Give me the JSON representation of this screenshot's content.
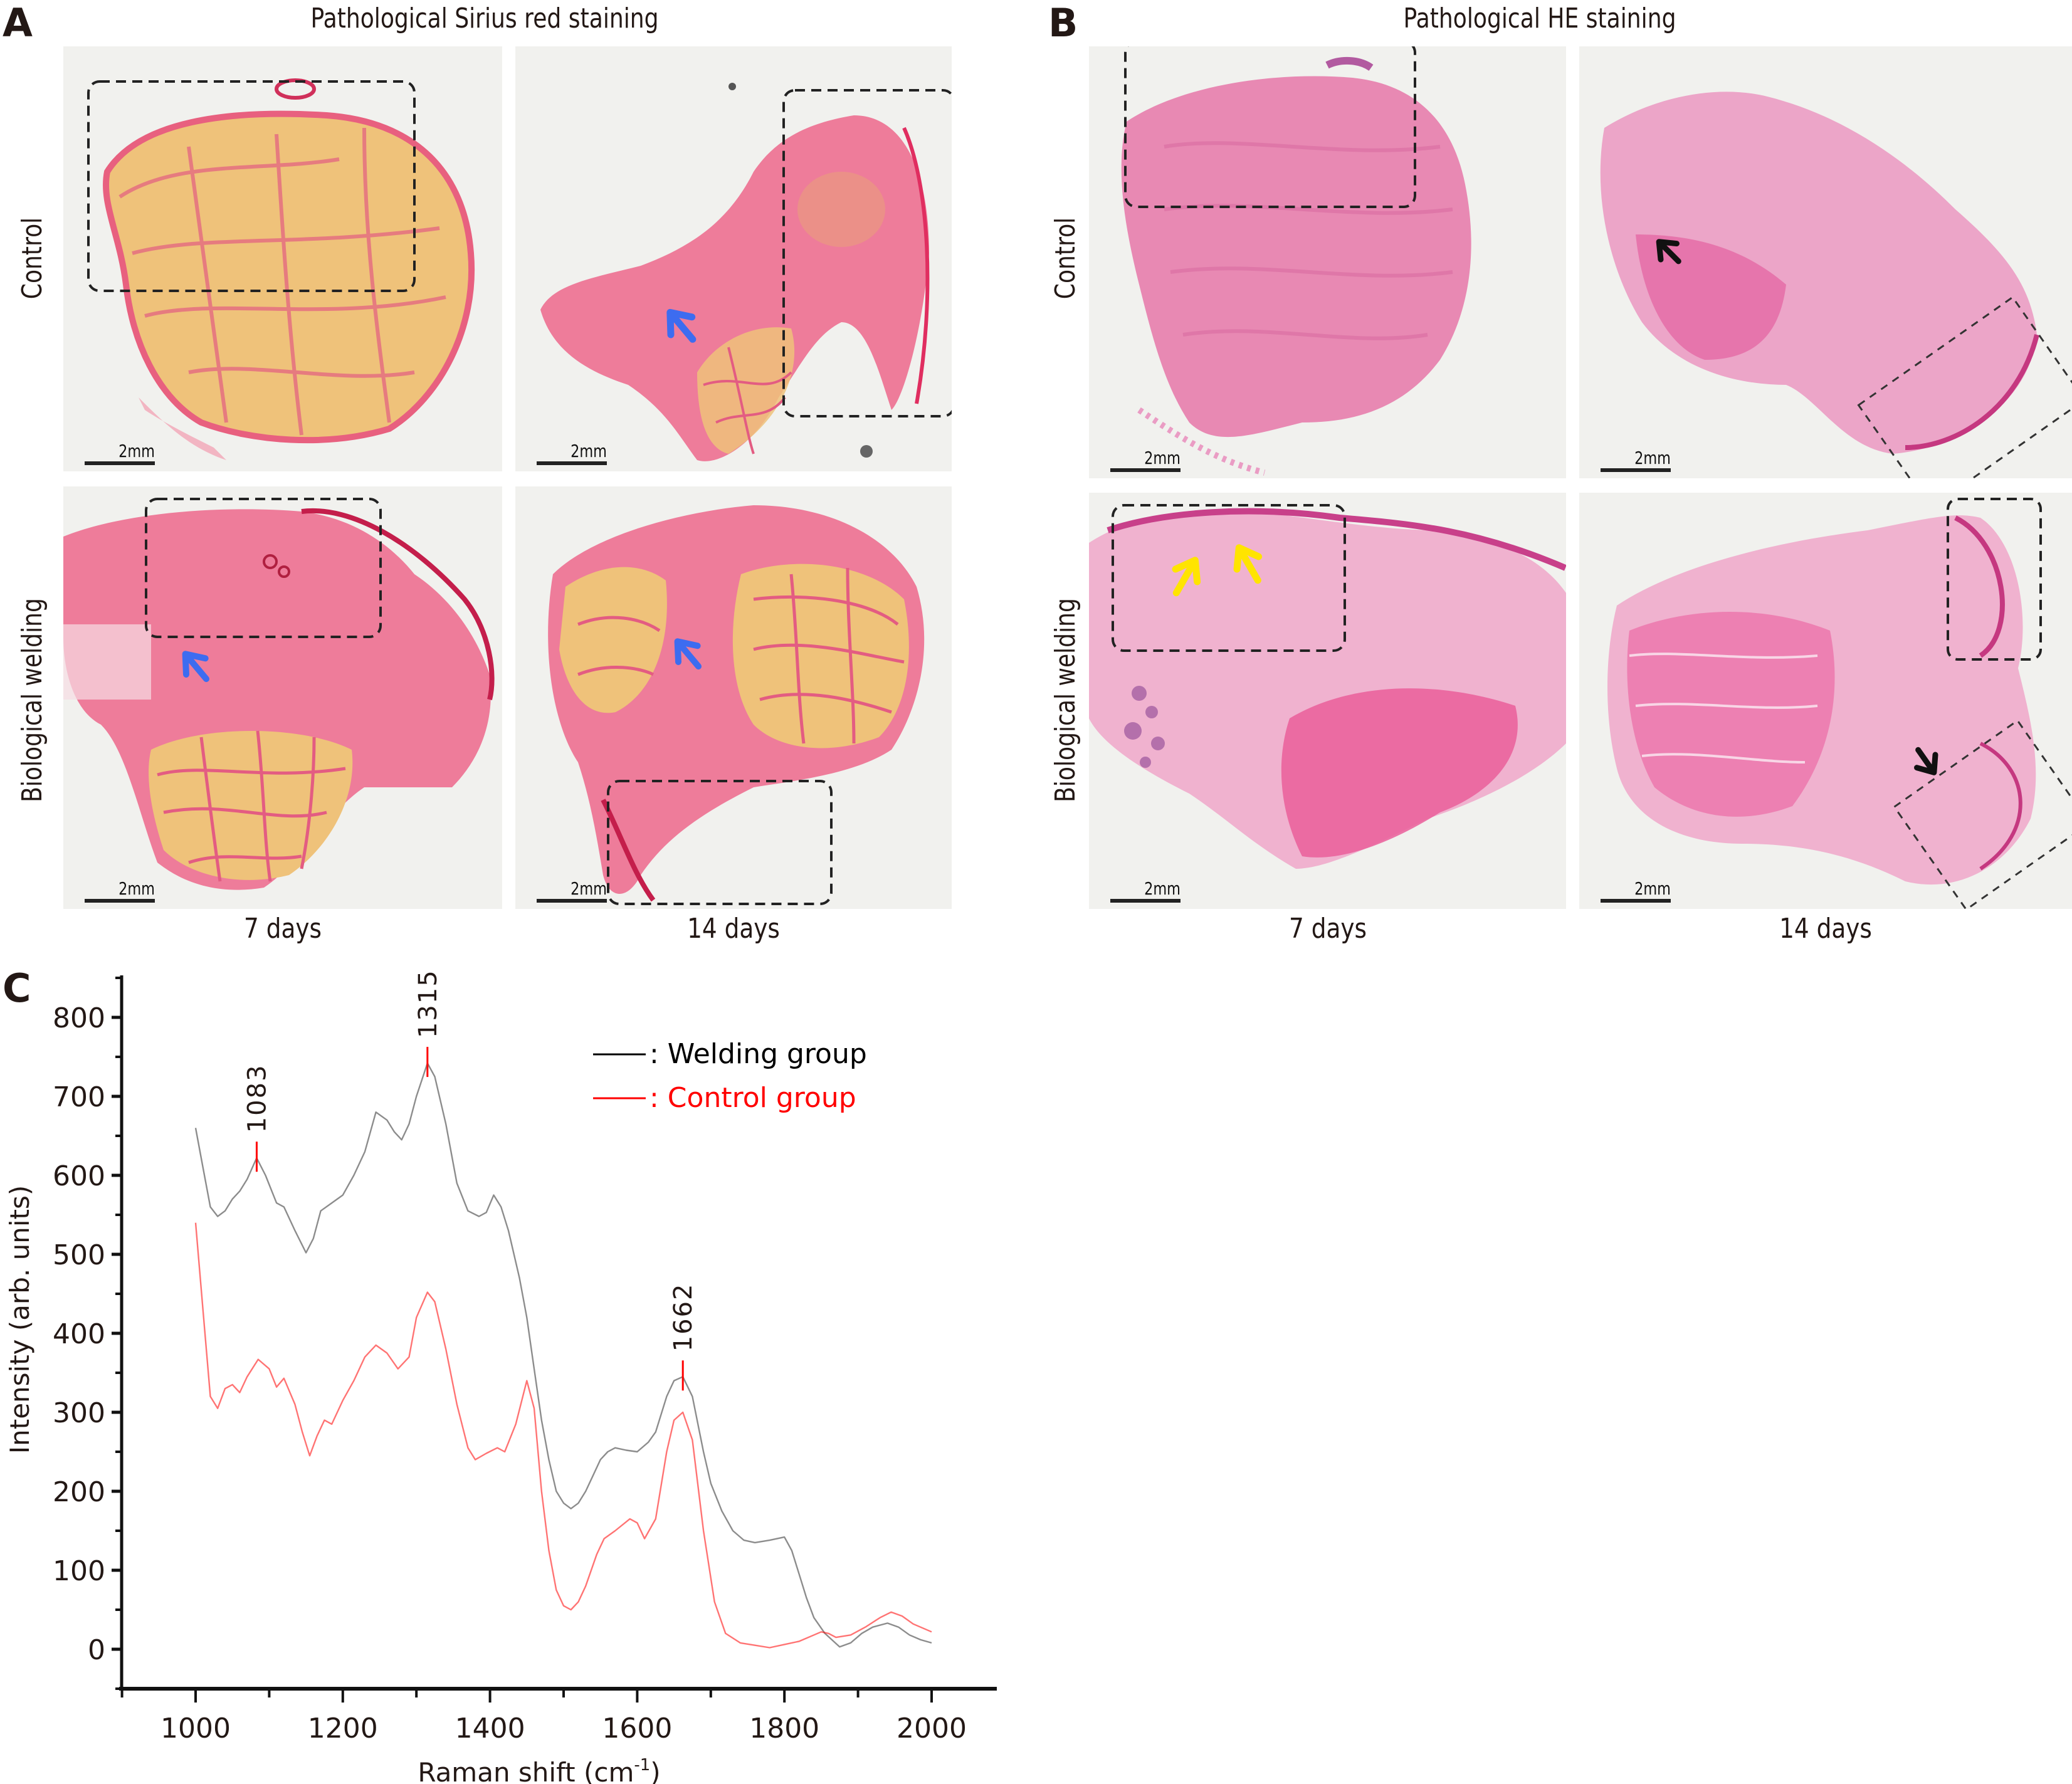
{
  "panel_a": {
    "letter": "A",
    "title": "Pathological Sirius red staining",
    "row_labels": [
      "Control",
      "Biological welding"
    ],
    "col_labels": [
      "7 days",
      "14 days"
    ],
    "scale_bar": "2mm",
    "images": [
      {
        "row": "Control",
        "col": "7 days",
        "stain": "sirius-red",
        "annotations": [
          "dashed-box"
        ]
      },
      {
        "row": "Control",
        "col": "14 days",
        "stain": "sirius-red",
        "annotations": [
          "dashed-box",
          "blue-arrow"
        ]
      },
      {
        "row": "Biological welding",
        "col": "7 days",
        "stain": "sirius-red",
        "annotations": [
          "dashed-box",
          "blue-arrow"
        ]
      },
      {
        "row": "Biological welding",
        "col": "14 days",
        "stain": "sirius-red",
        "annotations": [
          "dashed-box",
          "blue-arrow"
        ]
      }
    ]
  },
  "panel_b": {
    "letter": "B",
    "title": "Pathological HE staining",
    "row_labels": [
      "Control",
      "Biological welding"
    ],
    "col_labels": [
      "7 days",
      "14 days"
    ],
    "scale_bar": "2mm",
    "images": [
      {
        "row": "Control",
        "col": "7 days",
        "stain": "HE",
        "annotations": [
          "dashed-box"
        ]
      },
      {
        "row": "Control",
        "col": "14 days",
        "stain": "HE",
        "annotations": [
          "dashed-box",
          "black-arrow"
        ]
      },
      {
        "row": "Biological welding",
        "col": "7 days",
        "stain": "HE",
        "annotations": [
          "dashed-box",
          "yellow-arrow",
          "yellow-arrow"
        ]
      },
      {
        "row": "Biological welding",
        "col": "14 days",
        "stain": "HE",
        "annotations": [
          "dashed-box",
          "dashed-box",
          "black-arrow"
        ]
      }
    ]
  },
  "colors": {
    "sirius_pink": "#e8607f",
    "sirius_yellow": "#efc27a",
    "he_pink": "#e889b3",
    "he_purple": "#b25aa0",
    "welding_line": "#000000",
    "control_line": "#ff0000",
    "peak_marker": "#ff0000",
    "arrow_blue": "#3d6cf0",
    "arrow_yellow": "#ffe400",
    "arrow_black": "#111111"
  },
  "panel_c": {
    "letter": "C"
  },
  "chart_data": {
    "type": "line",
    "title": "",
    "xlabel": "Raman shift (cm-1)",
    "xlabel_main": "Raman shift (cm",
    "xlabel_sup": "-1",
    "xlabel_end": ")",
    "ylabel": "Intensity (arb. units)",
    "xlim": [
      900,
      2050
    ],
    "ylim": [
      -80,
      850
    ],
    "x_ticks": [
      1000,
      1200,
      1400,
      1600,
      1800,
      2000
    ],
    "x_tick_labels": [
      "1000",
      "1200",
      "1400",
      "1600",
      "1800",
      "2000"
    ],
    "y_ticks": [
      0,
      100,
      200,
      300,
      400,
      500,
      600,
      700,
      800
    ],
    "y_tick_labels": [
      "0",
      "100",
      "200",
      "300",
      "400",
      "500",
      "600",
      "700",
      "800"
    ],
    "grid": false,
    "legend": {
      "placement": "top-right",
      "entries": [
        {
          "label": ": Welding group",
          "color": "#000000"
        },
        {
          "label": ": Control group",
          "color": "#ff0000"
        }
      ]
    },
    "peak_annotations": [
      {
        "x": 1083,
        "label": "1083",
        "y": 622
      },
      {
        "x": 1315,
        "label": "1315",
        "y": 742
      },
      {
        "x": 1662,
        "label": "1662",
        "y": 345
      }
    ],
    "series": [
      {
        "name": "Welding group",
        "color": "#000000",
        "x": [
          1000,
          1010,
          1020,
          1030,
          1040,
          1050,
          1060,
          1070,
          1083,
          1095,
          1110,
          1120,
          1135,
          1150,
          1160,
          1170,
          1185,
          1200,
          1215,
          1230,
          1245,
          1260,
          1270,
          1280,
          1290,
          1300,
          1315,
          1325,
          1340,
          1355,
          1370,
          1385,
          1395,
          1405,
          1415,
          1425,
          1440,
          1450,
          1460,
          1470,
          1480,
          1490,
          1500,
          1510,
          1520,
          1530,
          1540,
          1550,
          1560,
          1570,
          1585,
          1600,
          1615,
          1625,
          1640,
          1650,
          1662,
          1675,
          1690,
          1700,
          1715,
          1730,
          1745,
          1760,
          1780,
          1800,
          1810,
          1820,
          1830,
          1840,
          1855,
          1875,
          1890,
          1905,
          1920,
          1940,
          1955,
          1970,
          1985,
          2000
        ],
        "y": [
          660,
          610,
          560,
          548,
          555,
          570,
          580,
          595,
          622,
          600,
          565,
          560,
          530,
          502,
          520,
          555,
          565,
          575,
          600,
          630,
          680,
          670,
          655,
          645,
          665,
          700,
          742,
          725,
          665,
          590,
          555,
          548,
          553,
          575,
          560,
          530,
          470,
          420,
          355,
          290,
          240,
          200,
          185,
          178,
          185,
          200,
          220,
          240,
          250,
          255,
          252,
          250,
          262,
          275,
          320,
          340,
          345,
          320,
          250,
          210,
          175,
          150,
          138,
          135,
          138,
          142,
          125,
          95,
          65,
          40,
          20,
          3,
          8,
          20,
          28,
          33,
          28,
          18,
          12,
          8
        ]
      },
      {
        "name": "Control group",
        "color": "#ff0000",
        "x": [
          1000,
          1010,
          1020,
          1030,
          1040,
          1050,
          1060,
          1070,
          1085,
          1100,
          1110,
          1120,
          1135,
          1145,
          1155,
          1165,
          1175,
          1185,
          1200,
          1215,
          1230,
          1245,
          1260,
          1275,
          1290,
          1300,
          1315,
          1325,
          1340,
          1355,
          1370,
          1380,
          1395,
          1410,
          1420,
          1435,
          1450,
          1460,
          1470,
          1480,
          1490,
          1500,
          1510,
          1520,
          1530,
          1545,
          1555,
          1570,
          1590,
          1600,
          1610,
          1625,
          1640,
          1650,
          1662,
          1675,
          1690,
          1705,
          1720,
          1740,
          1760,
          1780,
          1800,
          1820,
          1840,
          1850,
          1860,
          1870,
          1890,
          1910,
          1930,
          1945,
          1960,
          1975,
          2000
        ],
        "y": [
          540,
          430,
          320,
          305,
          330,
          335,
          325,
          345,
          367,
          355,
          332,
          343,
          310,
          275,
          245,
          270,
          290,
          285,
          315,
          340,
          370,
          385,
          375,
          355,
          370,
          420,
          452,
          440,
          380,
          310,
          255,
          240,
          248,
          255,
          250,
          285,
          340,
          305,
          200,
          125,
          75,
          55,
          50,
          60,
          80,
          120,
          140,
          150,
          165,
          160,
          140,
          165,
          250,
          290,
          300,
          265,
          150,
          60,
          20,
          8,
          5,
          2,
          6,
          10,
          18,
          22,
          20,
          15,
          18,
          28,
          40,
          47,
          42,
          32,
          22
        ]
      }
    ]
  }
}
